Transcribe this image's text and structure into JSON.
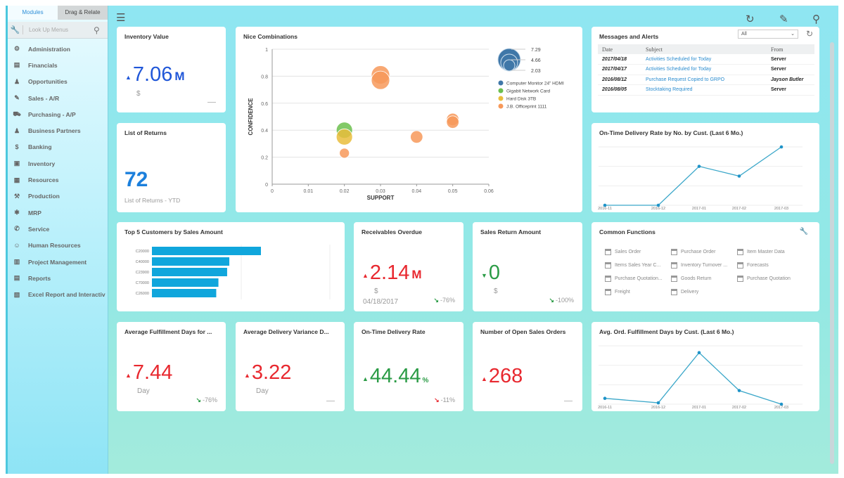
{
  "sidebar": {
    "tabs": [
      {
        "label": "Modules",
        "active": true
      },
      {
        "label": "Drag & Relate",
        "active": false
      }
    ],
    "search_placeholder": "Look Up Menus",
    "items": [
      {
        "label": "Administration",
        "icon": "admin-icon"
      },
      {
        "label": "Financials",
        "icon": "financials-icon"
      },
      {
        "label": "Opportunities",
        "icon": "opportunities-icon"
      },
      {
        "label": "Sales - A/R",
        "icon": "sales-tag-icon"
      },
      {
        "label": "Purchasing - A/P",
        "icon": "cart-icon"
      },
      {
        "label": "Business Partners",
        "icon": "person-icon"
      },
      {
        "label": "Banking",
        "icon": "dollar-coin-icon"
      },
      {
        "label": "Inventory",
        "icon": "inventory-icon"
      },
      {
        "label": "Resources",
        "icon": "resources-icon"
      },
      {
        "label": "Production",
        "icon": "production-icon"
      },
      {
        "label": "MRP",
        "icon": "mrp-icon"
      },
      {
        "label": "Service",
        "icon": "service-icon"
      },
      {
        "label": "Human Resources",
        "icon": "hr-icon"
      },
      {
        "label": "Project Management",
        "icon": "project-icon"
      },
      {
        "label": "Reports",
        "icon": "reports-icon"
      },
      {
        "label": "Excel Report and Interactiv",
        "icon": "excel-report-icon"
      }
    ]
  },
  "toolbar": {
    "icons": [
      "menu-icon",
      "refresh-icon",
      "pencil-icon",
      "search-icon"
    ]
  },
  "colors": {
    "accent_blue": "#1f56d8",
    "kpi_red": "#e8282f",
    "kpi_green": "#2a9b45",
    "bar": "#10a6dc",
    "line": "#3ba7c9",
    "background": "#8fe6f2"
  },
  "inventory_value": {
    "title": "Inventory Value",
    "value": "7.06",
    "unit": "M",
    "sub": "$",
    "direction": "up",
    "trend": "—"
  },
  "list_of_returns": {
    "title": "List of Returns",
    "value": "72",
    "sub": "List of Returns - YTD"
  },
  "receivables_overdue": {
    "title": "Receivables Overdue",
    "value": "2.14",
    "unit": "M",
    "sub": "$",
    "date": "04/18/2017",
    "direction": "up",
    "trend": "-76%"
  },
  "sales_return": {
    "title": "Sales Return Amount",
    "value": "0",
    "sub": "$",
    "direction": "down",
    "trend": "-100%"
  },
  "avg_fulfillment": {
    "title": "Average Fulfillment Days for ...",
    "value": "7.44",
    "sub": "Day",
    "direction": "up",
    "trend": "-76%"
  },
  "avg_delivery_variance": {
    "title": "Average Delivery Variance D...",
    "value": "3.22",
    "sub": "Day",
    "direction": "up",
    "trend": "—"
  },
  "on_time_rate": {
    "title": "On-Time Delivery Rate",
    "value": "44.44",
    "unit": "%",
    "direction": "up",
    "trend": "-11%"
  },
  "open_sales_orders": {
    "title": "Number of Open Sales Orders",
    "value": "268",
    "direction": "up",
    "trend": "—"
  },
  "messages": {
    "title": "Messages and Alerts",
    "filter": "All",
    "columns": [
      "Date",
      "Subject",
      "From"
    ],
    "rows": [
      {
        "date": "2017/04/18",
        "subject": "Activities Scheduled for Today",
        "from": "Server"
      },
      {
        "date": "2017/04/17",
        "subject": "Activities Scheduled for Today",
        "from": "Server"
      },
      {
        "date": "2016/08/12",
        "subject": "Purchase Request Copied to GRPO",
        "from": "Jayson Butler"
      },
      {
        "date": "2016/08/05",
        "subject": "Stocktaking Required",
        "from": "Server"
      }
    ]
  },
  "common_functions": {
    "title": "Common Functions",
    "items": [
      "Sales Order",
      "Purchase Order",
      "Item Master Data",
      "Items Sales Year C...",
      "Inventory Turnover ...",
      "Forecasts",
      "Purchase Quotation...",
      "Goods Return",
      "Purchase Quotation",
      "Freight",
      "Delivery"
    ]
  },
  "chart_data": [
    {
      "id": "bubble",
      "type": "scatter",
      "title": "Nice Combinations",
      "xlabel": "SUPPORT",
      "ylabel": "CONFIDENCE",
      "xlim": [
        0,
        0.06
      ],
      "ylim": [
        0,
        1
      ],
      "xticks": [
        "0",
        "0.01",
        "0.02",
        "0.03",
        "0.04",
        "0.05",
        "0.06"
      ],
      "yticks": [
        "0",
        "0.2",
        "0.4",
        "0.6",
        "0.8",
        "1"
      ],
      "grid": true,
      "legend": "right",
      "size_legend": [
        "7.29",
        "4.66",
        "2.03"
      ],
      "series": [
        {
          "name": "Computer Monitor 24\" HDMI",
          "color": "#3f77a8",
          "points": []
        },
        {
          "name": "Gigabit Network Card",
          "color": "#6cbf4e",
          "points": [
            {
              "x": 0.02,
              "y": 0.4,
              "size": 5
            }
          ]
        },
        {
          "name": "Hard Disk 3TB",
          "color": "#e9bd3c",
          "points": [
            {
              "x": 0.02,
              "y": 0.35,
              "size": 5
            }
          ]
        },
        {
          "name": "J.B. Officeprint 1111",
          "color": "#f7995a",
          "points": [
            {
              "x": 0.03,
              "y": 0.81,
              "size": 6
            },
            {
              "x": 0.03,
              "y": 0.77,
              "size": 6
            },
            {
              "x": 0.02,
              "y": 0.23,
              "size": 2.03
            },
            {
              "x": 0.04,
              "y": 0.35,
              "size": 3.2
            },
            {
              "x": 0.05,
              "y": 0.48,
              "size": 3.2
            },
            {
              "x": 0.05,
              "y": 0.46,
              "size": 3.2
            }
          ]
        }
      ]
    },
    {
      "id": "ontime",
      "type": "line",
      "title": "On-Time Delivery Rate by No. by Cust. (Last 6 Mo.)",
      "categories": [
        "2016-11",
        "2016-12",
        "2017-01",
        "2017-02",
        "2017-03"
      ],
      "values": [
        0,
        0,
        2,
        1.5,
        3
      ],
      "ylim": [
        0,
        3
      ],
      "grid": true
    },
    {
      "id": "fulfill",
      "type": "line",
      "title": "Avg. Ord. Fulfillment Days by Cust. (Last 6 Mo.)",
      "categories": [
        "2016-11",
        "2016-12",
        "2017-01",
        "2017-02",
        "2017-03"
      ],
      "values": [
        0.3,
        0.07,
        2.65,
        0.7,
        0
      ],
      "ylim": [
        0,
        3
      ],
      "grid": true
    },
    {
      "id": "top5",
      "type": "bar",
      "title": "Top 5 Customers by Sales Amount",
      "categories": [
        "C20000",
        "C40000",
        "C23900",
        "C70000",
        "C26000"
      ],
      "values": [
        100,
        71,
        69,
        61,
        59
      ]
    }
  ]
}
